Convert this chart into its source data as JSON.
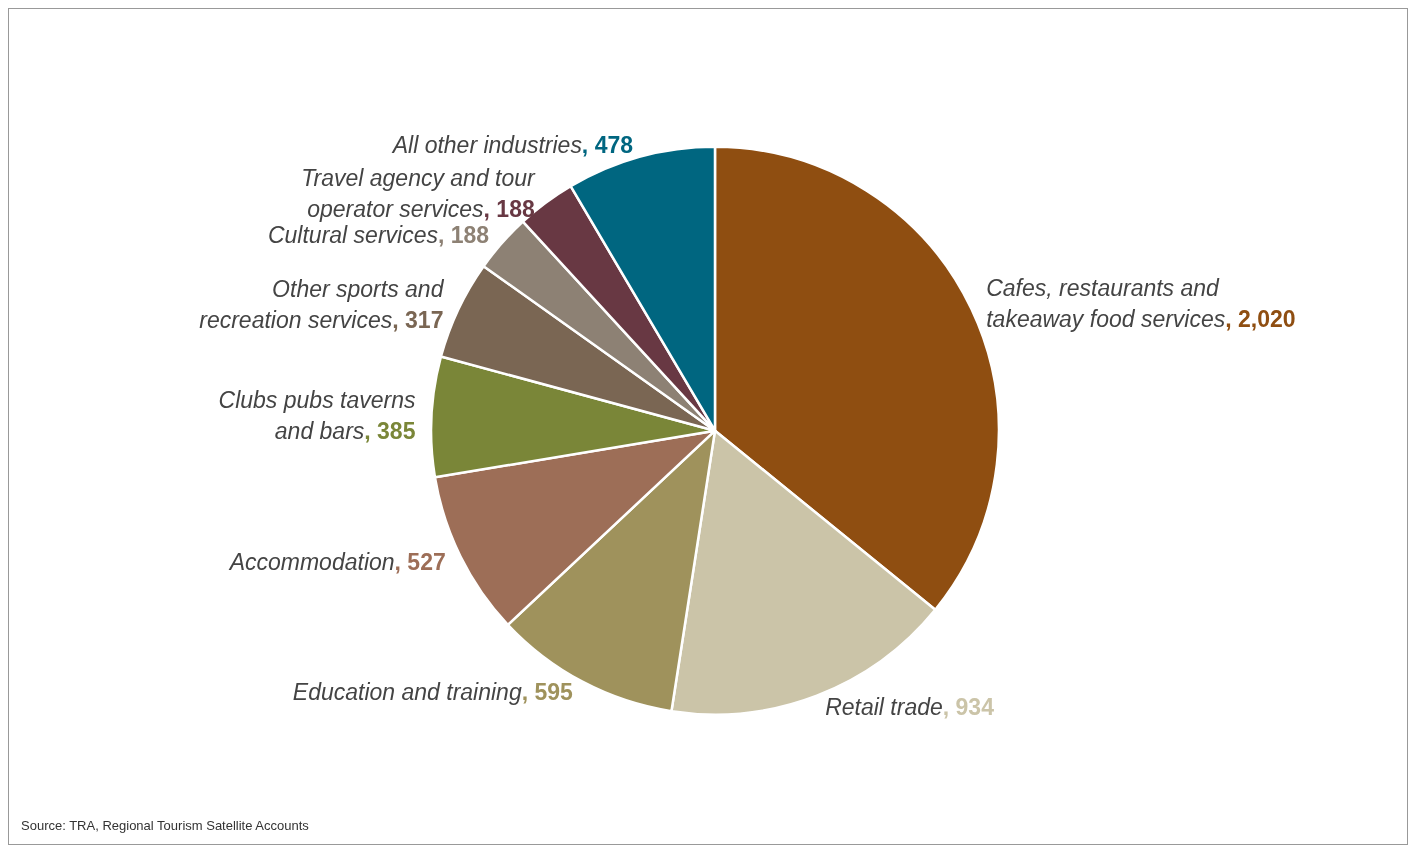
{
  "chart_data": {
    "type": "pie",
    "categories": [
      "Cafes, restaurants and\ntakeaway food services",
      "Retail trade",
      "Education and training",
      "Accommodation",
      "Clubs pubs taverns\nand bars",
      "Other sports and\nrecreation services",
      "Cultural services",
      "Travel agency and tour\noperator services",
      "All other industries"
    ],
    "values": [
      2020,
      934,
      595,
      527,
      385,
      317,
      188,
      188,
      478
    ],
    "value_labels": [
      ", 2,020",
      ", 934",
      ", 595",
      ", 527",
      ", 385",
      ", 317",
      ", 188",
      ", 188",
      ", 478"
    ],
    "colors": [
      "#8f4e11",
      "#cbc4a8",
      "#9f925c",
      "#9d6e57",
      "#7a8638",
      "#7a6653",
      "#8d8174",
      "#683843",
      "#006680"
    ],
    "legend": false,
    "annotations": [
      "Source: TRA, Regional Tourism Satellite Accounts"
    ]
  }
}
